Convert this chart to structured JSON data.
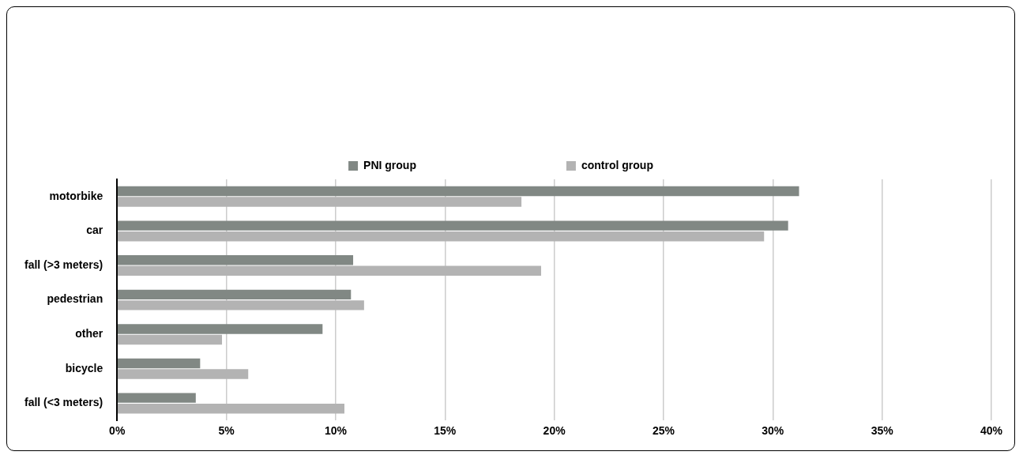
{
  "chart_data": {
    "type": "bar",
    "orientation": "horizontal",
    "categories": [
      "motorbike",
      "car",
      "fall (>3 meters)",
      "pedestrian",
      "other",
      "bicycle",
      "fall (<3 meters)"
    ],
    "series": [
      {
        "name": "PNI group",
        "color": "#818884",
        "values": [
          31.2,
          30.7,
          10.8,
          10.7,
          9.4,
          3.8,
          3.6
        ]
      },
      {
        "name": "control group",
        "color": "#b3b3b3",
        "values": [
          18.5,
          29.6,
          19.4,
          11.3,
          4.8,
          6.0,
          10.4
        ]
      }
    ],
    "xlim": [
      0,
      40
    ],
    "xticks": [
      {
        "value": 0,
        "label": "0%"
      },
      {
        "value": 5,
        "label": "5%"
      },
      {
        "value": 10,
        "label": "10%"
      },
      {
        "value": 15,
        "label": "15%"
      },
      {
        "value": 20,
        "label": "20%"
      },
      {
        "value": 25,
        "label": "25%"
      },
      {
        "value": 30,
        "label": "30%"
      },
      {
        "value": 35,
        "label": "35%"
      },
      {
        "value": 40,
        "label": "40%"
      }
    ],
    "grid": "x",
    "legend": "top"
  }
}
